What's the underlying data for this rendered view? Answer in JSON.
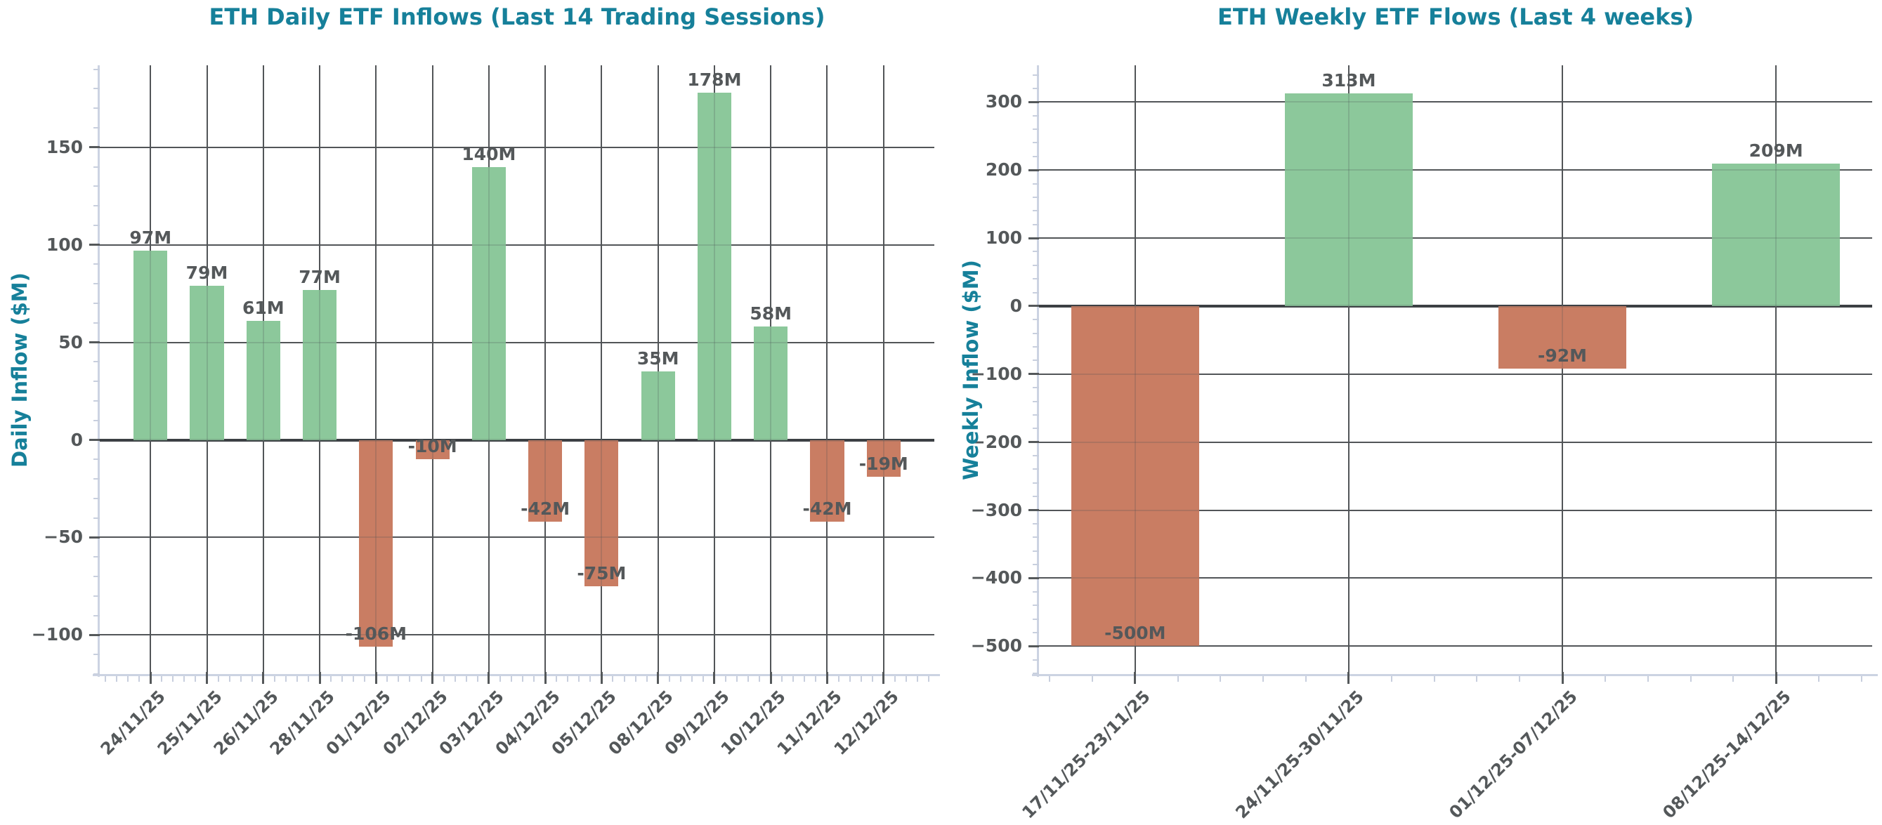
{
  "figure": {
    "background": "#ffffff"
  },
  "colors": {
    "title": "#16809A",
    "axis_label": "#16809A",
    "tick_label": "#54585A",
    "value_label": "#54585A",
    "grid": "#55585B",
    "zero_line": "#3A3E41",
    "spine": "#CCD3E2",
    "minor_tick": "#C8CFDE",
    "bar_positive": "#8CC89B",
    "bar_negative": "#C97D63"
  },
  "chart_data": [
    {
      "type": "bar",
      "title": "ETH Daily ETF Inflows (Last 14 Trading Sessions)",
      "xlabel": "",
      "ylabel": "Daily Inflow ($M)",
      "categories": [
        "24/11/25",
        "25/11/25",
        "26/11/25",
        "28/11/25",
        "01/12/25",
        "02/12/25",
        "03/12/25",
        "04/12/25",
        "05/12/25",
        "08/12/25",
        "09/12/25",
        "10/12/25",
        "11/12/25",
        "12/12/25"
      ],
      "values": [
        97,
        79,
        61,
        77,
        -106,
        -10,
        140,
        -42,
        -75,
        35,
        178,
        58,
        -42,
        -19
      ],
      "bar_labels": [
        "97M",
        "79M",
        "61M",
        "77M",
        "-106M",
        "-10M",
        "140M",
        "-42M",
        "-75M",
        "35M",
        "178M",
        "58M",
        "-42M",
        "-19M"
      ],
      "ylim": [
        -120,
        192
      ],
      "yticks": [
        150,
        100,
        50,
        0,
        -50,
        -100
      ],
      "y_minor_step": 10,
      "grid": true,
      "x_margin": 0.9,
      "x_tick_rotation": 45,
      "legend": "none"
    },
    {
      "type": "bar",
      "title": "ETH Weekly ETF Flows (Last 4 weeks)",
      "xlabel": "",
      "ylabel": "Weekly Inflow ($M)",
      "categories": [
        "17/11/25-23/11/25",
        "24/11/25-30/11/25",
        "01/12/25-07/12/25",
        "08/12/25-14/12/25"
      ],
      "values": [
        -500,
        313,
        -92,
        209
      ],
      "bar_labels": [
        "-500M",
        "313M",
        "-92M",
        "209M"
      ],
      "ylim": [
        -541,
        354
      ],
      "yticks": [
        300,
        200,
        100,
        0,
        -100,
        -200,
        -300,
        -400,
        -500
      ],
      "y_minor_step": 20,
      "grid": true,
      "x_margin": 0.45,
      "x_tick_rotation": 45,
      "legend": "none"
    }
  ]
}
